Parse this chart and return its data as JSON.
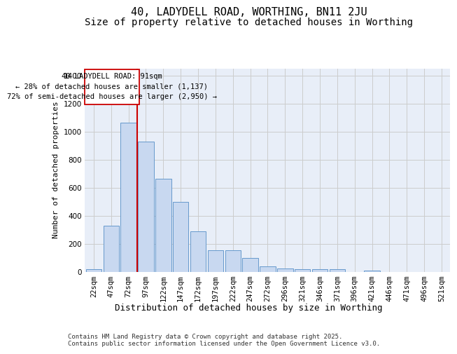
{
  "title": "40, LADYDELL ROAD, WORTHING, BN11 2JU",
  "subtitle": "Size of property relative to detached houses in Worthing",
  "xlabel": "Distribution of detached houses by size in Worthing",
  "ylabel": "Number of detached properties",
  "categories": [
    "22sqm",
    "47sqm",
    "72sqm",
    "97sqm",
    "122sqm",
    "147sqm",
    "172sqm",
    "197sqm",
    "222sqm",
    "247sqm",
    "272sqm",
    "296sqm",
    "321sqm",
    "346sqm",
    "371sqm",
    "396sqm",
    "421sqm",
    "446sqm",
    "471sqm",
    "496sqm",
    "521sqm"
  ],
  "values": [
    20,
    330,
    1065,
    930,
    665,
    500,
    290,
    155,
    155,
    100,
    40,
    25,
    20,
    20,
    18,
    0,
    10,
    0,
    0,
    0,
    0
  ],
  "bar_color": "#c8d8f0",
  "bar_edge_color": "#6699cc",
  "vline_color": "#cc0000",
  "annotation_text": "40 LADYDELL ROAD: 91sqm\n← 28% of detached houses are smaller (1,137)\n72% of semi-detached houses are larger (2,950) →",
  "annotation_box_color": "#ffffff",
  "annotation_box_edge_color": "#cc0000",
  "ylim": [
    0,
    1450
  ],
  "yticks": [
    0,
    200,
    400,
    600,
    800,
    1000,
    1200,
    1400
  ],
  "grid_color": "#cccccc",
  "bg_color": "#e8eef8",
  "footer": "Contains HM Land Registry data © Crown copyright and database right 2025.\nContains public sector information licensed under the Open Government Licence v3.0.",
  "title_fontsize": 11,
  "subtitle_fontsize": 10,
  "xlabel_fontsize": 9,
  "ylabel_fontsize": 8,
  "tick_fontsize": 7.5,
  "annotation_fontsize": 7.5,
  "footer_fontsize": 6.5
}
